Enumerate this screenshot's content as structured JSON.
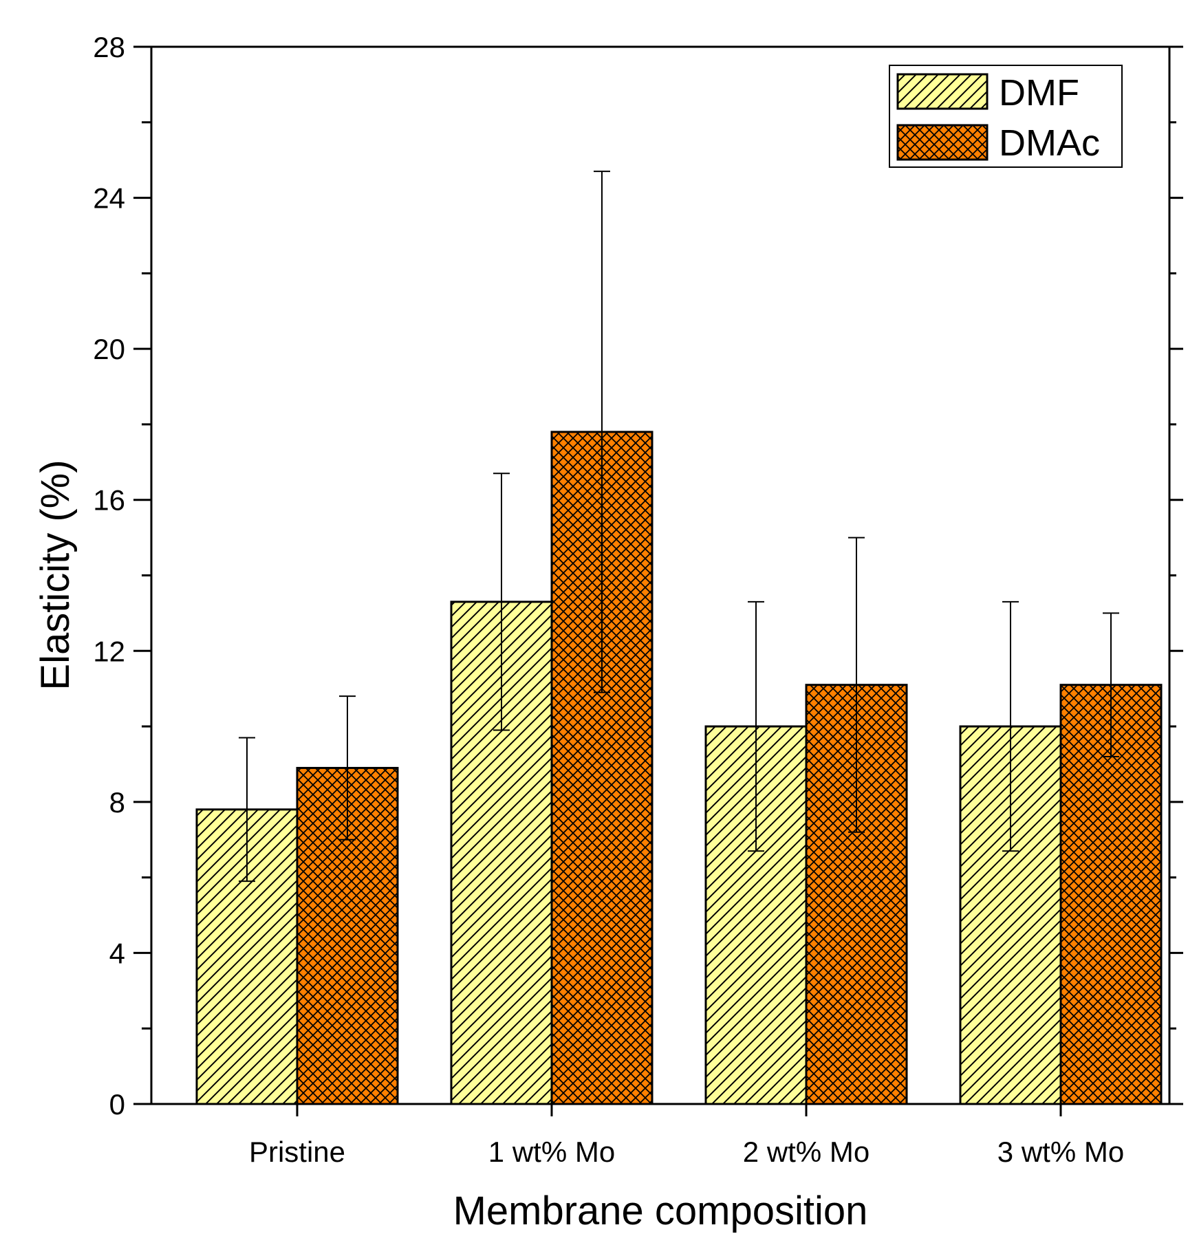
{
  "chart_data": {
    "type": "bar",
    "title": "",
    "xlabel": "Membrane composition",
    "ylabel": "Elasticity (%)",
    "ylim": [
      0,
      28
    ],
    "yticks": [
      0,
      4,
      8,
      12,
      16,
      20,
      24,
      28
    ],
    "yminor_step": 2,
    "grid": false,
    "legend_position": "top-right",
    "categories": [
      "Pristine",
      "1 wt% Mo",
      "2 wt% Mo",
      "3 wt% Mo"
    ],
    "series": [
      {
        "name": "DMF",
        "values": [
          7.8,
          13.3,
          10.0,
          10.0
        ],
        "errors": [
          1.9,
          3.4,
          3.3,
          3.3
        ],
        "color": "#ffff99",
        "pattern": "diagonal-hatch"
      },
      {
        "name": "DMAc",
        "values": [
          8.9,
          17.8,
          11.1,
          11.1
        ],
        "errors": [
          1.9,
          6.9,
          3.9,
          1.9
        ],
        "color": "#ff8000",
        "pattern": "cross-hatch"
      }
    ]
  }
}
